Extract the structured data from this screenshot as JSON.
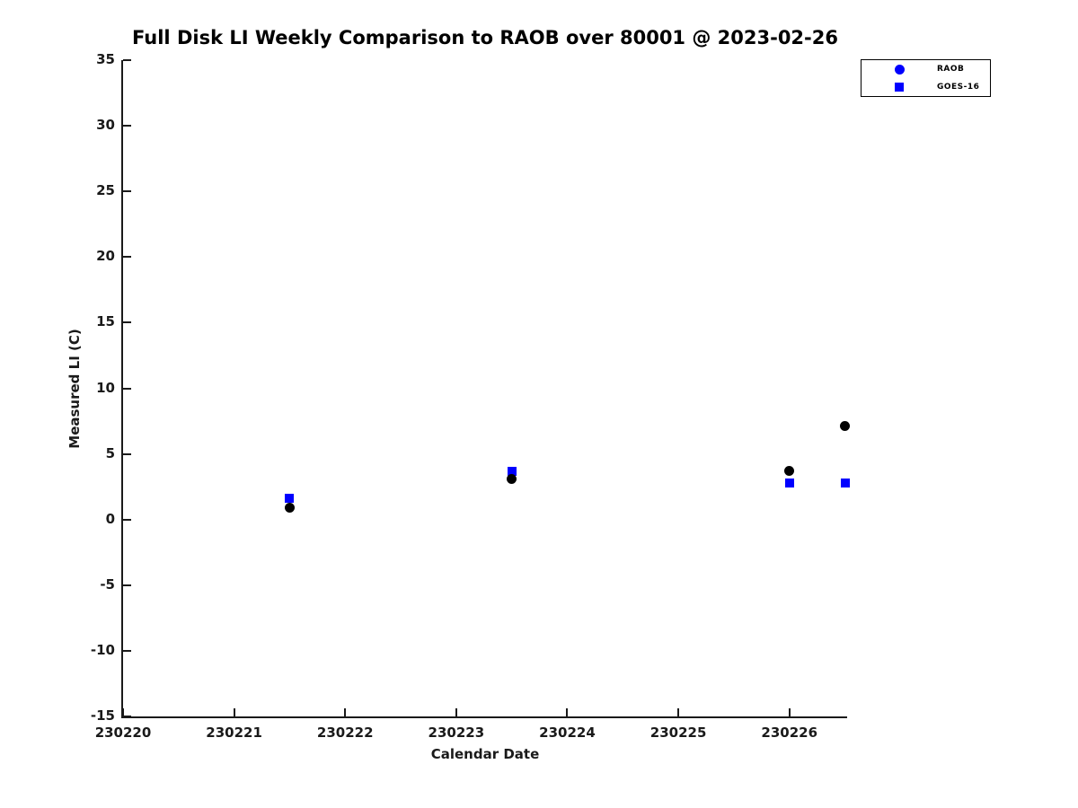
{
  "title": "Full Disk LI Weekly Comparison to RAOB over 80001 @ 2023-02-26",
  "colors": {
    "raob_marker": "#000000",
    "goes16_marker": "#0000ff",
    "legend_marker": "#0000ff",
    "axis": "#1a1a1a"
  },
  "legend": {
    "items": [
      {
        "label": "RAOB",
        "marker": "circle"
      },
      {
        "label": "GOES-16",
        "marker": "square"
      }
    ]
  },
  "chart_data": {
    "type": "scatter",
    "title": "Full Disk LI Weekly Comparison to RAOB over 80001 @ 2023-02-26",
    "xlabel": "Calendar Date",
    "ylabel": "Measured LI (C)",
    "xlim": [
      230220,
      230226.52
    ],
    "ylim": [
      -15,
      35
    ],
    "x_ticks": [
      230220,
      230221,
      230222,
      230223,
      230224,
      230225,
      230226
    ],
    "y_ticks": [
      -15,
      -10,
      -5,
      0,
      5,
      10,
      15,
      20,
      25,
      30,
      35
    ],
    "grid": false,
    "legend_position": "top-right-outside",
    "series": [
      {
        "name": "GOES-16",
        "marker": "square",
        "color": "#0000ff",
        "points": [
          [
            230221.5,
            1.6
          ],
          [
            230223.5,
            3.7
          ],
          [
            230226.0,
            2.8
          ],
          [
            230226.5,
            2.8
          ]
        ]
      },
      {
        "name": "RAOB",
        "marker": "circle",
        "color": "#000000",
        "points": [
          [
            230221.5,
            0.9
          ],
          [
            230223.5,
            3.1
          ],
          [
            230226.0,
            3.7
          ],
          [
            230226.5,
            7.1
          ]
        ]
      }
    ]
  }
}
